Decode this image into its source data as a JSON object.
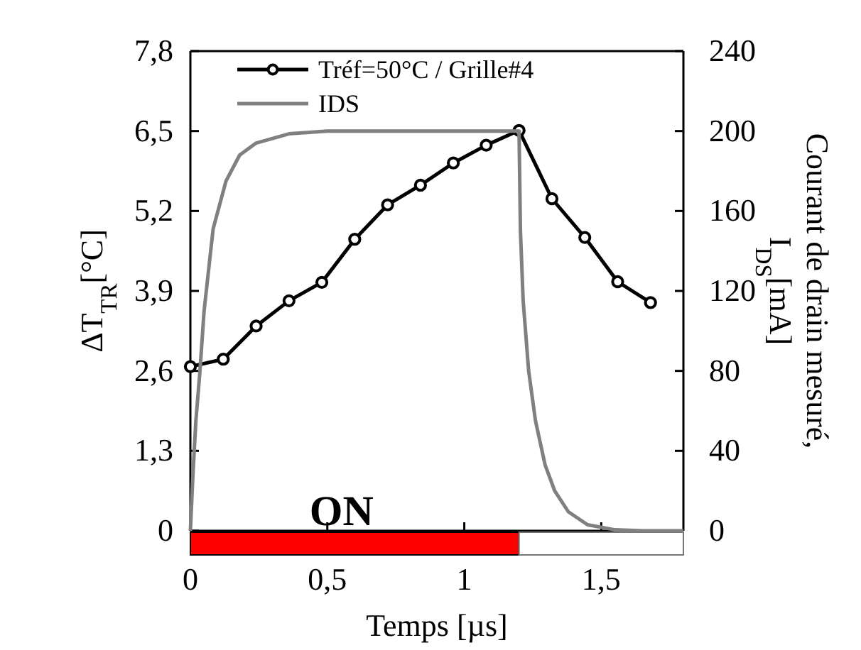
{
  "chart_data": {
    "type": "line",
    "xlabel": "Temps [µs]",
    "ylabel": "ΔT$_{TR}$[°C]",
    "y2label": "Courant de drain mesuré, I$_{DS}$[mA]",
    "xlim": [
      0,
      1.8
    ],
    "xticks": [
      0,
      {
        "value": 0.5,
        "label": "0,5"
      },
      1,
      {
        "value": 1.5,
        "label": "1,5"
      }
    ],
    "ylim": [
      0,
      7.8
    ],
    "yticks": [
      0,
      {
        "value": 1.3,
        "label": "1,3"
      },
      {
        "value": 2.6,
        "label": "2,6"
      },
      {
        "value": 3.9,
        "label": "3,9"
      },
      {
        "value": 5.2,
        "label": "5,2"
      },
      {
        "value": 6.5,
        "label": "6,5"
      },
      {
        "value": 7.8,
        "label": "7,8"
      }
    ],
    "y2lim": [
      0,
      240
    ],
    "y2ticks": [
      0,
      40,
      80,
      120,
      160,
      200,
      240
    ],
    "legend": "top left",
    "grid": false,
    "series": [
      {
        "name": "Tréf=50°C / Grille#4",
        "color": "#000000",
        "marker": "circle",
        "x": [
          0,
          0.12,
          0.24,
          0.36,
          0.48,
          0.6,
          0.72,
          0.84,
          0.96,
          1.08,
          1.2,
          1.32,
          1.44,
          1.56,
          1.68
        ],
        "values": [
          2.67,
          2.79,
          3.33,
          3.74,
          4.04,
          4.74,
          5.3,
          5.62,
          5.98,
          6.27,
          6.51,
          5.4,
          4.77,
          4.05,
          3.71
        ]
      },
      {
        "name": "IDS",
        "color": "#808080",
        "marker": "none",
        "axis": "y2",
        "x": [
          0,
          0.01,
          0.02,
          0.035,
          0.05,
          0.083,
          0.13,
          0.18,
          0.24,
          0.36,
          0.5,
          1.2,
          1.205,
          1.215,
          1.235,
          1.26,
          1.295,
          1.33,
          1.38,
          1.45,
          1.55,
          1.65,
          1.8
        ],
        "values": [
          0,
          30,
          55,
          80,
          110,
          151,
          175,
          188,
          194,
          198.6,
          200,
          200,
          150,
          115,
          80,
          55,
          33,
          20,
          9.5,
          3,
          0.5,
          0,
          0
        ]
      }
    ],
    "annotations": [
      "ON"
    ]
  }
}
